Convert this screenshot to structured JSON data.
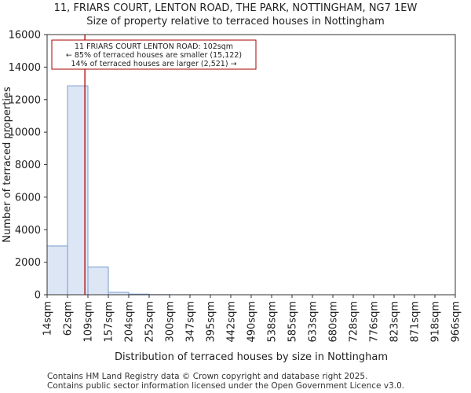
{
  "chart_data": {
    "type": "bar",
    "title": "11, FRIARS COURT, LENTON ROAD, THE PARK, NOTTINGHAM, NG7 1EW",
    "subtitle": "Size of property relative to terraced houses in Nottingham",
    "xlabel": "Distribution of terraced houses by size in Nottingham",
    "ylabel": "Number of terraced properties",
    "ylim": [
      0,
      16000
    ],
    "yticks": [
      0,
      2000,
      4000,
      6000,
      8000,
      10000,
      12000,
      14000,
      16000
    ],
    "bin_edges": [
      14,
      62,
      109,
      157,
      204,
      252,
      300,
      347,
      395,
      442,
      490,
      538,
      585,
      633,
      680,
      728,
      776,
      823,
      871,
      918,
      966
    ],
    "tick_labels": [
      "14sqm",
      "62sqm",
      "109sqm",
      "157sqm",
      "204sqm",
      "252sqm",
      "300sqm",
      "347sqm",
      "395sqm",
      "442sqm",
      "490sqm",
      "538sqm",
      "585sqm",
      "633sqm",
      "680sqm",
      "728sqm",
      "776sqm",
      "823sqm",
      "871sqm",
      "918sqm",
      "966sqm"
    ],
    "values": [
      3000,
      12850,
      1700,
      150,
      40,
      10,
      5,
      3,
      2,
      1,
      1,
      0,
      0,
      0,
      0,
      0,
      0,
      0,
      0,
      0
    ],
    "marker": {
      "value": 102,
      "color": "#aa0000"
    },
    "annotation": [
      "11 FRIARS COURT LENTON ROAD: 102sqm",
      "← 85% of terraced houses are smaller (15,122)",
      "14% of terraced houses are larger (2,521) →"
    ],
    "bar_fill": "#dce6f5",
    "bar_stroke": "#7a9ccc"
  },
  "footer": [
    "Contains HM Land Registry data © Crown copyright and database right 2025.",
    "Contains public sector information licensed under the Open Government Licence v3.0."
  ]
}
